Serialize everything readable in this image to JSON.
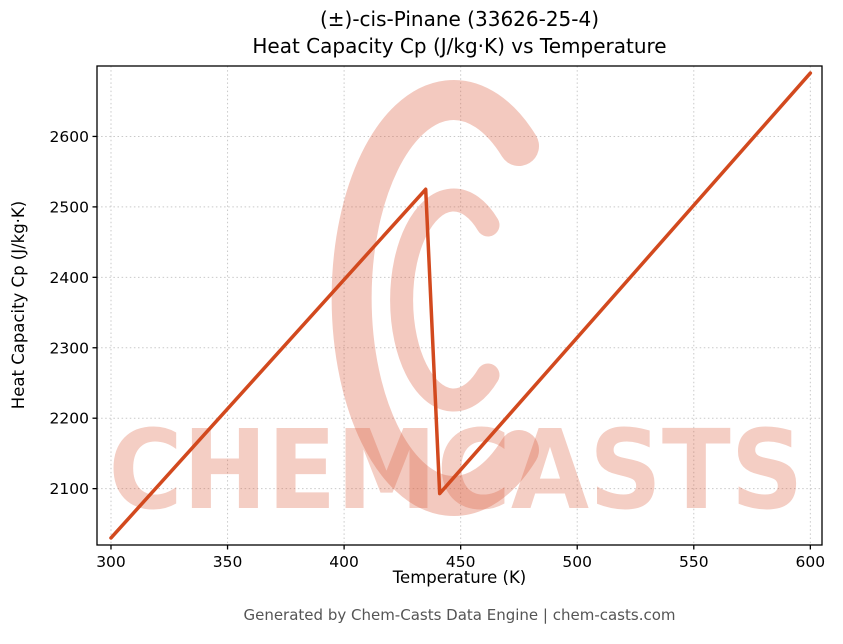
{
  "chart_data": {
    "type": "line",
    "title_line1": "(±)-cis-Pinane (33626-25-4)",
    "title_line2": "Heat Capacity Cp (J/kg·K) vs Temperature",
    "xlabel": "Temperature (K)",
    "ylabel": "Heat Capacity Cp (J/kg·K)",
    "xlim": [
      294,
      605
    ],
    "ylim": [
      2020,
      2700
    ],
    "xticks": [
      300,
      350,
      400,
      450,
      500,
      550,
      600
    ],
    "yticks": [
      2100,
      2200,
      2300,
      2400,
      2500,
      2600
    ],
    "grid": true,
    "grid_color": "#c9c9c9",
    "spine_color": "#000000",
    "background": "#ffffff",
    "series": [
      {
        "name": "Heat Capacity Cp",
        "color": "#d2491e",
        "width": 3.5,
        "points": [
          [
            300,
            2030
          ],
          [
            435,
            2525
          ],
          [
            441,
            2093
          ],
          [
            600,
            2690
          ]
        ]
      }
    ]
  },
  "watermark": {
    "text": "CHEMCASTS",
    "text_color": "rgba(219, 92, 60, 0.30)",
    "logo_color": "rgba(219, 92, 60, 0.33)",
    "logo": "chemcasts-c-swirl-logo"
  },
  "footer": {
    "text": "Generated by Chem-Casts Data Engine | chem-casts.com"
  }
}
